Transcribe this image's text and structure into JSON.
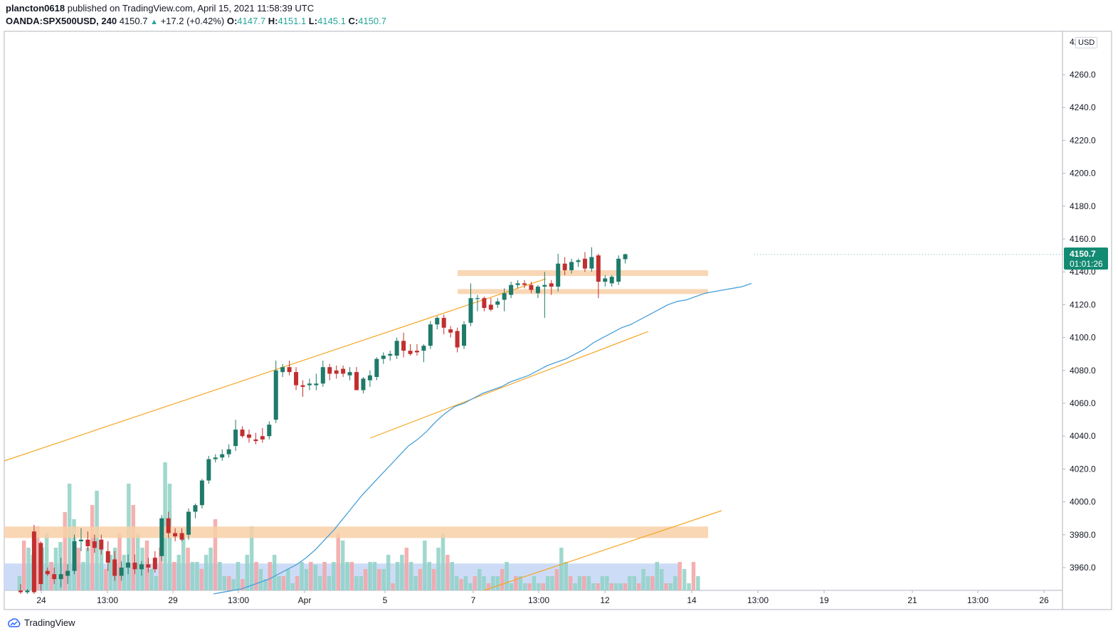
{
  "header": {
    "publisher": "plancton0618",
    "published_text": "published on TradingView.com, April 15, 2021 11:58:39 UTC",
    "symbol": "OANDA:SPX500USD, 240",
    "last": "4150.7",
    "change": "+17.2 (+0.42%)",
    "o_label": "O:",
    "o_value": "4147.7",
    "h_label": "H:",
    "h_value": "4151.1",
    "l_label": "L:",
    "l_value": "4145.1",
    "c_label": "C:",
    "c_value": "4150.7"
  },
  "currency_label": "USD",
  "price_tag": {
    "price": "4150.7",
    "countdown": "01:01:26"
  },
  "footer": {
    "brand": "TradingView"
  },
  "colors": {
    "up": "#26a69a",
    "down": "#ef5350",
    "up_body": "#1f7a6a",
    "down_body": "#c0302f",
    "ma": "#4a9fd8",
    "trend": "#f5a623",
    "zone": "#f8d0a8",
    "volume_zone": "#c8d8f5"
  },
  "chart_data": {
    "type": "candlestick",
    "symbol": "OANDA:SPX500USD",
    "timeframe": "240",
    "ylim": [
      3944,
      4284
    ],
    "y_ticks": [
      4260,
      4240,
      4220,
      4200,
      4180,
      4160,
      4140,
      4120,
      4100,
      4080,
      4060,
      4040,
      4020,
      4000,
      3980,
      3960
    ],
    "x_labels": [
      "24",
      "13:00",
      "29",
      "13:00",
      "Apr",
      "5",
      "7",
      "13:00",
      "12",
      "14",
      "13:00",
      "19",
      "21",
      "13:00",
      "26"
    ],
    "candles": [
      {
        "o": 3946,
        "h": 3950,
        "l": 3944,
        "c": 3945
      },
      {
        "o": 3945,
        "h": 3947,
        "l": 3944,
        "c": 3946
      },
      {
        "o": 3982,
        "h": 3986,
        "l": 3944,
        "c": 3945
      },
      {
        "o": 3975,
        "h": 3976,
        "l": 3946,
        "c": 3950
      },
      {
        "o": 3958,
        "h": 3960,
        "l": 3955,
        "c": 3956
      },
      {
        "o": 3956,
        "h": 3960,
        "l": 3950,
        "c": 3953
      },
      {
        "o": 3953,
        "h": 3966,
        "l": 3948,
        "c": 3956
      },
      {
        "o": 3955,
        "h": 3962,
        "l": 3950,
        "c": 3958
      },
      {
        "o": 3958,
        "h": 3980,
        "l": 3956,
        "c": 3976
      },
      {
        "o": 3976,
        "h": 3984,
        "l": 3970,
        "c": 3977
      },
      {
        "o": 3977,
        "h": 3982,
        "l": 3970,
        "c": 3973
      },
      {
        "o": 3976,
        "h": 3980,
        "l": 3969,
        "c": 3972
      },
      {
        "o": 3977,
        "h": 3980,
        "l": 3968,
        "c": 3971
      },
      {
        "o": 3970,
        "h": 3976,
        "l": 3958,
        "c": 3963
      },
      {
        "o": 3965,
        "h": 3970,
        "l": 3952,
        "c": 3955
      },
      {
        "o": 3955,
        "h": 3964,
        "l": 3952,
        "c": 3960
      },
      {
        "o": 3960,
        "h": 3968,
        "l": 3956,
        "c": 3963
      },
      {
        "o": 3963,
        "h": 3968,
        "l": 3956,
        "c": 3959
      },
      {
        "o": 3959,
        "h": 3964,
        "l": 3955,
        "c": 3962
      },
      {
        "o": 3962,
        "h": 3966,
        "l": 3957,
        "c": 3960
      },
      {
        "o": 3966,
        "h": 3970,
        "l": 3957,
        "c": 3959
      },
      {
        "o": 3967,
        "h": 3992,
        "l": 3964,
        "c": 3990
      },
      {
        "o": 3990,
        "h": 3994,
        "l": 3978,
        "c": 3981
      },
      {
        "o": 3981,
        "h": 3984,
        "l": 3976,
        "c": 3979
      },
      {
        "o": 3981,
        "h": 3984,
        "l": 3976,
        "c": 3977
      },
      {
        "o": 3980,
        "h": 3996,
        "l": 3977,
        "c": 3994
      },
      {
        "o": 3994,
        "h": 3999,
        "l": 3990,
        "c": 3998
      },
      {
        "o": 3998,
        "h": 4014,
        "l": 3996,
        "c": 4013
      },
      {
        "o": 4013,
        "h": 4028,
        "l": 4011,
        "c": 4026
      },
      {
        "o": 4026,
        "h": 4029,
        "l": 4024,
        "c": 4027
      },
      {
        "o": 4027,
        "h": 4032,
        "l": 4025,
        "c": 4029
      },
      {
        "o": 4029,
        "h": 4035,
        "l": 4027,
        "c": 4032
      },
      {
        "o": 4034,
        "h": 4050,
        "l": 4031,
        "c": 4044
      },
      {
        "o": 4044,
        "h": 4046,
        "l": 4039,
        "c": 4040
      },
      {
        "o": 4041,
        "h": 4044,
        "l": 4036,
        "c": 4039
      },
      {
        "o": 4038,
        "h": 4042,
        "l": 4035,
        "c": 4037
      },
      {
        "o": 4040,
        "h": 4045,
        "l": 4036,
        "c": 4038
      },
      {
        "o": 4040,
        "h": 4049,
        "l": 4038,
        "c": 4047
      },
      {
        "o": 4050,
        "h": 4086,
        "l": 4048,
        "c": 4080
      },
      {
        "o": 4079,
        "h": 4084,
        "l": 4076,
        "c": 4082
      },
      {
        "o": 4082,
        "h": 4086,
        "l": 4077,
        "c": 4079
      },
      {
        "o": 4079,
        "h": 4082,
        "l": 4068,
        "c": 4071
      },
      {
        "o": 4071,
        "h": 4074,
        "l": 4064,
        "c": 4070
      },
      {
        "o": 4071,
        "h": 4075,
        "l": 4068,
        "c": 4072
      },
      {
        "o": 4071,
        "h": 4078,
        "l": 4068,
        "c": 4072
      },
      {
        "o": 4072,
        "h": 4086,
        "l": 4070,
        "c": 4082
      },
      {
        "o": 4082,
        "h": 4084,
        "l": 4074,
        "c": 4078
      },
      {
        "o": 4080,
        "h": 4083,
        "l": 4075,
        "c": 4078
      },
      {
        "o": 4081,
        "h": 4083,
        "l": 4076,
        "c": 4078
      },
      {
        "o": 4077,
        "h": 4082,
        "l": 4074,
        "c": 4079
      },
      {
        "o": 4079,
        "h": 4082,
        "l": 4068,
        "c": 4068
      },
      {
        "o": 4068,
        "h": 4076,
        "l": 4066,
        "c": 4075
      },
      {
        "o": 4074,
        "h": 4080,
        "l": 4070,
        "c": 4077
      },
      {
        "o": 4076,
        "h": 4088,
        "l": 4074,
        "c": 4087
      },
      {
        "o": 4087,
        "h": 4091,
        "l": 4084,
        "c": 4089
      },
      {
        "o": 4089,
        "h": 4092,
        "l": 4086,
        "c": 4090
      },
      {
        "o": 4089,
        "h": 4100,
        "l": 4087,
        "c": 4098
      },
      {
        "o": 4098,
        "h": 4103,
        "l": 4088,
        "c": 4092
      },
      {
        "o": 4092,
        "h": 4096,
        "l": 4089,
        "c": 4090
      },
      {
        "o": 4092,
        "h": 4096,
        "l": 4089,
        "c": 4091
      },
      {
        "o": 4092,
        "h": 4096,
        "l": 4085,
        "c": 4095
      },
      {
        "o": 4095,
        "h": 4110,
        "l": 4093,
        "c": 4108
      },
      {
        "o": 4108,
        "h": 4113,
        "l": 4105,
        "c": 4112
      },
      {
        "o": 4112,
        "h": 4114,
        "l": 4102,
        "c": 4106
      },
      {
        "o": 4105,
        "h": 4107,
        "l": 4100,
        "c": 4103
      },
      {
        "o": 4104,
        "h": 4106,
        "l": 4091,
        "c": 4094
      },
      {
        "o": 4095,
        "h": 4110,
        "l": 4093,
        "c": 4108
      },
      {
        "o": 4109,
        "h": 4133,
        "l": 4107,
        "c": 4124
      },
      {
        "o": 4124,
        "h": 4126,
        "l": 4116,
        "c": 4124
      },
      {
        "o": 4124,
        "h": 4125,
        "l": 4116,
        "c": 4118
      },
      {
        "o": 4120,
        "h": 4124,
        "l": 4116,
        "c": 4117
      },
      {
        "o": 4120,
        "h": 4124,
        "l": 4118,
        "c": 4122
      },
      {
        "o": 4123,
        "h": 4130,
        "l": 4116,
        "c": 4127
      },
      {
        "o": 4126,
        "h": 4134,
        "l": 4124,
        "c": 4132
      },
      {
        "o": 4132,
        "h": 4135,
        "l": 4130,
        "c": 4133
      },
      {
        "o": 4133,
        "h": 4135,
        "l": 4130,
        "c": 4132
      },
      {
        "o": 4132,
        "h": 4134,
        "l": 4127,
        "c": 4129
      },
      {
        "o": 4127,
        "h": 4132,
        "l": 4124,
        "c": 4131
      },
      {
        "o": 4131,
        "h": 4140,
        "l": 4112,
        "c": 4132
      },
      {
        "o": 4133,
        "h": 4135,
        "l": 4126,
        "c": 4131
      },
      {
        "o": 4131,
        "h": 4151,
        "l": 4128,
        "c": 4145
      },
      {
        "o": 4145,
        "h": 4149,
        "l": 4138,
        "c": 4141
      },
      {
        "o": 4141,
        "h": 4148,
        "l": 4139,
        "c": 4146
      },
      {
        "o": 4146,
        "h": 4148,
        "l": 4143,
        "c": 4147
      },
      {
        "o": 4148,
        "h": 4152,
        "l": 4140,
        "c": 4142
      },
      {
        "o": 4142,
        "h": 4155,
        "l": 4140,
        "c": 4149
      },
      {
        "o": 4150,
        "h": 4151,
        "l": 4124,
        "c": 4134
      },
      {
        "o": 4134,
        "h": 4138,
        "l": 4131,
        "c": 4136
      },
      {
        "o": 4133,
        "h": 4138,
        "l": 4131,
        "c": 4137
      },
      {
        "o": 4134,
        "h": 4150,
        "l": 4132,
        "c": 4148
      },
      {
        "o": 4147.7,
        "h": 4151.1,
        "l": 4145.1,
        "c": 4150.7
      }
    ],
    "volume": [
      0.1,
      0.35,
      0.3,
      0.25,
      0.45,
      0.3,
      0.4,
      0.2,
      0.3,
      0.34,
      0.55,
      0.75,
      0.5,
      0.3,
      0.2,
      0.3,
      0.6,
      0.7,
      0.35,
      0.15,
      0.25,
      0.3,
      0.4,
      0.25,
      0.75,
      0.6,
      0.4,
      0.3,
      0.35,
      0.15,
      0.1,
      0.3,
      0.9,
      0.75,
      0.2,
      0.25,
      0.4,
      0.3,
      0.2,
      0.2,
      0.15,
      0.25,
      0.3,
      0.5,
      0.2,
      0.1,
      0.1,
      0.08,
      0.2,
      0.08,
      0.25,
      0.45,
      0.2,
      0.15,
      0.08,
      0.2,
      0.25,
      0.1,
      0.1,
      0.15,
      0.05,
      0.1,
      0.2,
      0.15,
      0.2,
      0.18,
      0.1,
      0.2,
      0.1,
      0.2,
      0.4,
      0.35,
      0.2,
      0.2,
      0.1,
      0.1,
      0.15,
      0.2,
      0.2,
      0.15,
      0.15,
      0.25,
      0.05,
      0.2,
      0.25,
      0.3,
      0.2,
      0.1,
      0.15,
      0.35,
      0.2,
      0.15,
      0.3,
      0.4,
      0.25,
      0.2,
      0.1,
      0.08,
      0.1,
      0.05,
      0.1,
      0.15,
      0.1,
      0.05,
      0.1,
      0.1,
      0.15,
      0.2,
      0.05,
      0.1,
      0.1,
      0.05,
      0.05,
      0.1,
      0.05,
      0.05,
      0.1,
      0.1,
      0.15,
      0.3,
      0.2,
      0.1,
      0.05,
      0.1,
      0.1,
      0.1,
      0.05,
      0.05,
      0.1,
      0.1,
      0.05,
      0.05,
      0.05,
      0.05,
      0.1,
      0.1,
      0.05,
      0.15,
      0.1,
      0.1,
      0.2,
      0.15,
      0.05,
      0.05,
      0.1,
      0.2,
      0.15,
      0.05,
      0.2,
      0.1
    ],
    "ma": [
      3944,
      3945,
      3946,
      3947,
      3949,
      3951,
      3953,
      3956,
      3959,
      3962,
      3966,
      3971,
      3977,
      3983,
      3990,
      3997,
      4004,
      4010,
      4016,
      4022,
      4028,
      4034,
      4038,
      4043,
      4049,
      4054,
      4058,
      4060,
      4063,
      4066,
      4068,
      4070,
      4073,
      4075,
      4077,
      4080,
      4083,
      4085,
      4087,
      4090,
      4093,
      4097,
      4100,
      4103,
      4106,
      4108,
      4111,
      4114,
      4117,
      4120,
      4122,
      4123,
      4125,
      4127,
      4128,
      4129,
      4130,
      4131,
      4133
    ],
    "zones": [
      {
        "from": 4137.5,
        "to": 4141
      },
      {
        "from": 4126.5,
        "to": 4129.5
      },
      {
        "from": 3978,
        "to": 3985
      }
    ],
    "volume_zone": true
  }
}
